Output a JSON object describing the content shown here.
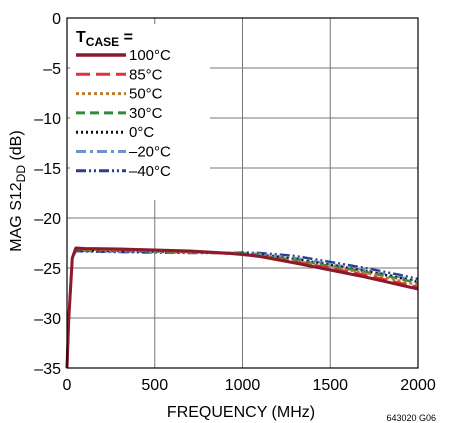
{
  "chart_data": {
    "type": "line",
    "xlabel": "FREQUENCY (MHz)",
    "ylabel_main": "MAG S12",
    "ylabel_sub": "DD",
    "ylabel_unit": " (dB)",
    "xlim": [
      0,
      2000
    ],
    "ylim": [
      -35,
      0
    ],
    "xticks": [
      "0",
      "500",
      "1000",
      "1500",
      "2000"
    ],
    "yticks": [
      "0",
      "–5",
      "–10",
      "–15",
      "–20",
      "–25",
      "–30",
      "–35"
    ],
    "grid": true,
    "legend": {
      "title_main": "T",
      "title_sub": "CASE",
      "title_suffix": " =",
      "placement": "top-left"
    },
    "figure_code": "643020 G06",
    "series": [
      {
        "name": "100°C",
        "color": "#8b1a2b",
        "dash": "",
        "width": 3,
        "x": [
          0,
          10,
          30,
          50,
          100,
          300,
          500,
          700,
          900,
          1000,
          1100,
          1300,
          1500,
          1700,
          1900,
          2000
        ],
        "y": [
          -35,
          -30,
          -24,
          -23.0,
          -23.05,
          -23.1,
          -23.2,
          -23.3,
          -23.5,
          -23.65,
          -23.85,
          -24.5,
          -25.2,
          -25.9,
          -26.7,
          -27.1
        ]
      },
      {
        "name": "85°C",
        "color": "#e03040",
        "dash": "14 6",
        "width": 2.5,
        "x": [
          0,
          10,
          30,
          50,
          100,
          300,
          500,
          700,
          900,
          1000,
          1100,
          1300,
          1500,
          1700,
          1900,
          2000
        ],
        "y": [
          -35,
          -30,
          -24,
          -23.05,
          -23.1,
          -23.15,
          -23.25,
          -23.35,
          -23.55,
          -23.65,
          -23.85,
          -24.4,
          -25.0,
          -25.7,
          -26.5,
          -26.9
        ]
      },
      {
        "name": "50°C",
        "color": "#c07a30",
        "dash": "3 3",
        "width": 2.5,
        "x": [
          0,
          10,
          30,
          50,
          100,
          300,
          500,
          700,
          900,
          1000,
          1100,
          1300,
          1500,
          1700,
          1900,
          2000
        ],
        "y": [
          -35,
          -30,
          -24,
          -23.1,
          -23.15,
          -23.2,
          -23.3,
          -23.4,
          -23.55,
          -23.6,
          -23.8,
          -24.3,
          -24.9,
          -25.5,
          -26.3,
          -26.7
        ]
      },
      {
        "name": "30°C",
        "color": "#2e8b3a",
        "dash": "9 5",
        "width": 2.5,
        "x": [
          0,
          10,
          30,
          50,
          100,
          300,
          500,
          700,
          900,
          1000,
          1100,
          1300,
          1500,
          1700,
          1900,
          2000
        ],
        "y": [
          -35,
          -30,
          -24,
          -23.15,
          -23.2,
          -23.25,
          -23.3,
          -23.4,
          -23.5,
          -23.55,
          -23.75,
          -24.2,
          -24.8,
          -25.4,
          -26.1,
          -26.5
        ]
      },
      {
        "name": "0°C",
        "color": "#111111",
        "dash": "2 3",
        "width": 2.5,
        "x": [
          0,
          10,
          30,
          50,
          100,
          300,
          500,
          700,
          900,
          1000,
          1100,
          1300,
          1500,
          1700,
          1900,
          2000
        ],
        "y": [
          -35,
          -30,
          -24,
          -23.2,
          -23.25,
          -23.3,
          -23.35,
          -23.4,
          -23.5,
          -23.55,
          -23.7,
          -24.1,
          -24.7,
          -25.3,
          -26.0,
          -26.4
        ]
      },
      {
        "name": "–20°C",
        "color": "#6f93c8",
        "dash": "10 4 3 4",
        "width": 2.5,
        "x": [
          0,
          10,
          30,
          50,
          100,
          300,
          500,
          700,
          900,
          1000,
          1100,
          1300,
          1500,
          1700,
          1900,
          2000
        ],
        "y": [
          -35,
          -30,
          -24,
          -23.25,
          -23.3,
          -23.35,
          -23.4,
          -23.45,
          -23.5,
          -23.5,
          -23.6,
          -24.0,
          -24.6,
          -25.2,
          -25.9,
          -26.3
        ]
      },
      {
        "name": "–40°C",
        "color": "#2a3e8f",
        "dash": "10 3 2 3 2 3",
        "width": 2.5,
        "x": [
          0,
          10,
          30,
          50,
          100,
          300,
          500,
          700,
          900,
          1000,
          1100,
          1300,
          1500,
          1700,
          1900,
          2000
        ],
        "y": [
          -35,
          -30,
          -24,
          -23.3,
          -23.35,
          -23.4,
          -23.45,
          -23.5,
          -23.5,
          -23.45,
          -23.5,
          -23.8,
          -24.4,
          -25.0,
          -25.7,
          -26.1
        ]
      }
    ]
  }
}
